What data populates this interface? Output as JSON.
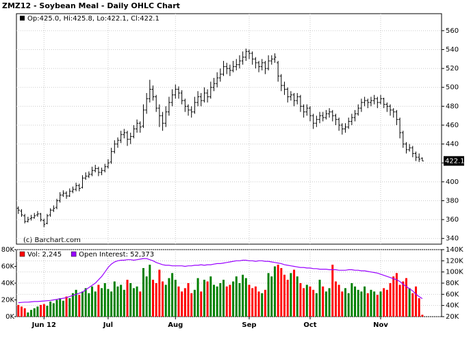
{
  "chart_data": [
    {
      "type": "ohlc",
      "title": "ZMZ12 - Soybean Meal - Daily OHLC Chart",
      "legend": "Op:425.0, Hi:425.8, Lo:422.1, Cl:422.1",
      "annotation": "(c) Barchart.com",
      "color": "#000000",
      "grid": true,
      "xlim": [
        -0.6,
        132
      ],
      "ylim": [
        334,
        578
      ],
      "yticks": [
        340,
        360,
        380,
        400,
        420,
        440,
        460,
        480,
        500,
        520,
        540,
        560
      ],
      "ohlc": [
        [
          372,
          374,
          366,
          370
        ],
        [
          369,
          371,
          363,
          365
        ],
        [
          364,
          366,
          356,
          358
        ],
        [
          358,
          363,
          357,
          360
        ],
        [
          361,
          365,
          359,
          362
        ],
        [
          362,
          367,
          361,
          364
        ],
        [
          365,
          369,
          363,
          366
        ],
        [
          366,
          367,
          358,
          360
        ],
        [
          359,
          361,
          352,
          355
        ],
        [
          356,
          366,
          355,
          364
        ],
        [
          365,
          372,
          363,
          370
        ],
        [
          370,
          375,
          368,
          372
        ],
        [
          373,
          382,
          371,
          380
        ],
        [
          380,
          389,
          378,
          386
        ],
        [
          386,
          391,
          384,
          388
        ],
        [
          388,
          390,
          382,
          385
        ],
        [
          385,
          393,
          384,
          390
        ],
        [
          390,
          395,
          388,
          392
        ],
        [
          392,
          399,
          390,
          396
        ],
        [
          396,
          398,
          390,
          393
        ],
        [
          394,
          407,
          393,
          404
        ],
        [
          404,
          410,
          402,
          406
        ],
        [
          406,
          411,
          404,
          408
        ],
        [
          408,
          416,
          406,
          412
        ],
        [
          412,
          418,
          410,
          414
        ],
        [
          414,
          416,
          406,
          410
        ],
        [
          410,
          415,
          407,
          412
        ],
        [
          412,
          419,
          410,
          416
        ],
        [
          416,
          424,
          414,
          420
        ],
        [
          421,
          436,
          419,
          432
        ],
        [
          432,
          444,
          430,
          440
        ],
        [
          440,
          447,
          436,
          444
        ],
        [
          444,
          454,
          441,
          450
        ],
        [
          450,
          456,
          446,
          452
        ],
        [
          452,
          454,
          438,
          445
        ],
        [
          445,
          452,
          440,
          448
        ],
        [
          448,
          460,
          446,
          456
        ],
        [
          456,
          466,
          452,
          462
        ],
        [
          462,
          464,
          452,
          458
        ],
        [
          459,
          482,
          457,
          476
        ],
        [
          476,
          494,
          472,
          488
        ],
        [
          488,
          508,
          484,
          498
        ],
        [
          498,
          502,
          486,
          490
        ],
        [
          490,
          492,
          474,
          478
        ],
        [
          478,
          482,
          458,
          470
        ],
        [
          470,
          474,
          454,
          462
        ],
        [
          462,
          480,
          458,
          474
        ],
        [
          474,
          490,
          470,
          484
        ],
        [
          484,
          498,
          480,
          492
        ],
        [
          492,
          503,
          488,
          498
        ],
        [
          498,
          501,
          488,
          494
        ],
        [
          494,
          497,
          482,
          486
        ],
        [
          486,
          488,
          474,
          480
        ],
        [
          480,
          482,
          470,
          476
        ],
        [
          476,
          480,
          468,
          474
        ],
        [
          474,
          490,
          472,
          484
        ],
        [
          484,
          496,
          480,
          490
        ],
        [
          490,
          494,
          480,
          486
        ],
        [
          486,
          500,
          484,
          494
        ],
        [
          494,
          498,
          484,
          490
        ],
        [
          490,
          506,
          488,
          500
        ],
        [
          500,
          510,
          496,
          504
        ],
        [
          504,
          516,
          500,
          510
        ],
        [
          510,
          520,
          506,
          514
        ],
        [
          514,
          528,
          512,
          522
        ],
        [
          522,
          526,
          514,
          520
        ],
        [
          520,
          524,
          512,
          518
        ],
        [
          518,
          528,
          516,
          522
        ],
        [
          522,
          530,
          518,
          524
        ],
        [
          524,
          534,
          520,
          528
        ],
        [
          528,
          538,
          524,
          532
        ],
        [
          532,
          541,
          528,
          538
        ],
        [
          538,
          540,
          530,
          536
        ],
        [
          536,
          538,
          524,
          530
        ],
        [
          530,
          532,
          520,
          526
        ],
        [
          526,
          528,
          516,
          522
        ],
        [
          522,
          530,
          518,
          526
        ],
        [
          526,
          528,
          514,
          520
        ],
        [
          520,
          534,
          518,
          528
        ],
        [
          528,
          534,
          524,
          530
        ],
        [
          530,
          536,
          526,
          532
        ],
        [
          526,
          528,
          506,
          512
        ],
        [
          512,
          514,
          496,
          502
        ],
        [
          502,
          506,
          492,
          498
        ],
        [
          498,
          500,
          484,
          490
        ],
        [
          490,
          496,
          486,
          492
        ],
        [
          492,
          494,
          480,
          486
        ],
        [
          486,
          494,
          482,
          490
        ],
        [
          490,
          492,
          474,
          480
        ],
        [
          480,
          482,
          468,
          474
        ],
        [
          474,
          482,
          470,
          478
        ],
        [
          478,
          480,
          464,
          470
        ],
        [
          470,
          472,
          456,
          462
        ],
        [
          462,
          470,
          458,
          466
        ],
        [
          466,
          474,
          462,
          470
        ],
        [
          470,
          474,
          464,
          468
        ],
        [
          468,
          476,
          466,
          472
        ],
        [
          472,
          478,
          468,
          474
        ],
        [
          474,
          476,
          464,
          470
        ],
        [
          470,
          472,
          460,
          466
        ],
        [
          466,
          468,
          454,
          460
        ],
        [
          460,
          462,
          450,
          456
        ],
        [
          456,
          462,
          452,
          458
        ],
        [
          458,
          468,
          456,
          464
        ],
        [
          464,
          472,
          460,
          468
        ],
        [
          468,
          476,
          464,
          472
        ],
        [
          472,
          482,
          470,
          478
        ],
        [
          478,
          488,
          474,
          484
        ],
        [
          484,
          490,
          480,
          486
        ],
        [
          486,
          488,
          478,
          484
        ],
        [
          484,
          490,
          480,
          486
        ],
        [
          486,
          492,
          482,
          488
        ],
        [
          488,
          490,
          478,
          484
        ],
        [
          484,
          492,
          482,
          488
        ],
        [
          488,
          489,
          478,
          482
        ],
        [
          482,
          484,
          474,
          480
        ],
        [
          480,
          482,
          470,
          476
        ],
        [
          476,
          478,
          468,
          474
        ],
        [
          474,
          476,
          460,
          466
        ],
        [
          466,
          468,
          446,
          452
        ],
        [
          452,
          454,
          436,
          440
        ],
        [
          440,
          442,
          430,
          434
        ],
        [
          434,
          440,
          432,
          436
        ],
        [
          436,
          438,
          426,
          430
        ],
        [
          430,
          432,
          422,
          426
        ],
        [
          426,
          430,
          421,
          424
        ],
        [
          425.0,
          425.8,
          422.1,
          422.1
        ]
      ]
    },
    {
      "type": "volume",
      "grid": true,
      "up_color": "#008000",
      "down_color": "#ff0000",
      "xlim": [
        -0.6,
        132
      ],
      "xticks": [
        {
          "value": 8,
          "label": "Jun 12"
        },
        {
          "value": 28,
          "label": "Jul"
        },
        {
          "value": 49,
          "label": "Aug"
        },
        {
          "value": 72,
          "label": "Sep"
        },
        {
          "value": 91,
          "label": "Oct"
        },
        {
          "value": 113,
          "label": "Nov"
        }
      ],
      "ylim": [
        0,
        80000
      ],
      "yticks": [
        {
          "value": 0,
          "label": "0K"
        },
        {
          "value": 20000,
          "label": "20K"
        },
        {
          "value": 40000,
          "label": "40K"
        },
        {
          "value": 60000,
          "label": "60K"
        },
        {
          "value": 80000,
          "label": "80K"
        }
      ],
      "y2lim": [
        20000,
        140000
      ],
      "y2ticks": [
        {
          "value": 20000,
          "label": "20K"
        },
        {
          "value": 40000,
          "label": "40K"
        },
        {
          "value": 60000,
          "label": "60K"
        },
        {
          "value": 80000,
          "label": "80K"
        },
        {
          "value": 100000,
          "label": "100K"
        },
        {
          "value": 120000,
          "label": "120K"
        },
        {
          "value": 140000,
          "label": "140K"
        }
      ],
      "series": [
        {
          "name": "Vol: 2,245",
          "color": "#ff0000",
          "values": [
            14000,
            12000,
            10000,
            5000,
            8000,
            10000,
            12000,
            14000,
            15000,
            13000,
            18000,
            16000,
            20000,
            22000,
            19000,
            24000,
            22000,
            28000,
            32000,
            26000,
            30000,
            34000,
            28000,
            36000,
            30000,
            38000,
            34000,
            40000,
            33000,
            30000,
            42000,
            36000,
            38000,
            32000,
            44000,
            40000,
            34000,
            36000,
            30000,
            58000,
            48000,
            62000,
            44000,
            40000,
            56000,
            42000,
            38000,
            46000,
            52000,
            44000,
            36000,
            30000,
            34000,
            40000,
            28000,
            32000,
            46000,
            30000,
            44000,
            42000,
            48000,
            38000,
            36000,
            40000,
            44000,
            36000,
            38000,
            42000,
            48000,
            40000,
            50000,
            46000,
            38000,
            34000,
            36000,
            30000,
            28000,
            32000,
            52000,
            48000,
            60000,
            62000,
            58000,
            50000,
            44000,
            52000,
            56000,
            48000,
            40000,
            34000,
            38000,
            36000,
            32000,
            28000,
            44000,
            36000,
            30000,
            34000,
            62000,
            42000,
            38000,
            30000,
            34000,
            28000,
            40000,
            36000,
            32000,
            30000,
            36000,
            28000,
            32000,
            30000,
            26000,
            30000,
            34000,
            32000,
            40000,
            48000,
            52000,
            38000,
            42000,
            46000,
            34000,
            28000,
            36000,
            22000,
            2245
          ]
        },
        {
          "name": "Open Interest: 52,373",
          "color": "#9900ff",
          "axis": "y2",
          "values": [
            45000,
            45500,
            46000,
            46000,
            46500,
            47000,
            47000,
            47500,
            48000,
            48500,
            49000,
            50000,
            51000,
            52000,
            53000,
            54000,
            56000,
            58000,
            60000,
            62000,
            64000,
            68000,
            72000,
            76000,
            80000,
            86000,
            92000,
            100000,
            108000,
            114000,
            118000,
            120000,
            121000,
            121000,
            122000,
            122000,
            121000,
            122000,
            123000,
            124000,
            124000,
            122000,
            120000,
            117000,
            115000,
            113000,
            112000,
            112000,
            111000,
            111000,
            111000,
            111000,
            110000,
            111000,
            111000,
            112000,
            112000,
            113000,
            112000,
            113000,
            113000,
            114000,
            115000,
            115000,
            116000,
            117000,
            118000,
            119000,
            120000,
            120000,
            121000,
            121000,
            120000,
            120000,
            119000,
            120000,
            120000,
            119000,
            119000,
            118000,
            117000,
            116000,
            115000,
            113000,
            112000,
            111000,
            110000,
            109000,
            108000,
            108000,
            107000,
            107000,
            106000,
            106000,
            105000,
            105000,
            105000,
            104000,
            104000,
            104000,
            103000,
            103000,
            103000,
            104000,
            104000,
            103000,
            103000,
            102000,
            102000,
            101000,
            100000,
            99000,
            98000,
            96000,
            94000,
            92000,
            90000,
            88000,
            86000,
            83000,
            78000,
            74000,
            70000,
            66000,
            60000,
            56000,
            52373
          ]
        }
      ]
    }
  ]
}
